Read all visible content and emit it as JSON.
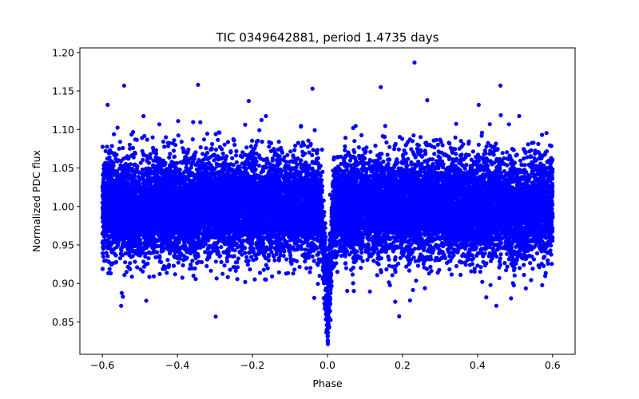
{
  "chart_data": {
    "type": "scatter",
    "title": "TIC 0349642881, period 1.4735 days",
    "xlabel": "Phase",
    "ylabel": "Normalized PDC flux",
    "xlim": [
      -0.66,
      0.66
    ],
    "ylim": [
      0.808,
      1.206
    ],
    "x_ticks": [
      -0.6,
      -0.4,
      -0.2,
      0.0,
      0.2,
      0.4,
      0.6
    ],
    "x_tick_labels": [
      "−0.6",
      "−0.4",
      "−0.2",
      "0.0",
      "0.2",
      "0.4",
      "0.6"
    ],
    "y_ticks": [
      0.85,
      0.9,
      0.95,
      1.0,
      1.05,
      1.1,
      1.15,
      1.2
    ],
    "y_tick_labels": [
      "0.85",
      "0.90",
      "0.95",
      "1.00",
      "1.05",
      "1.10",
      "1.15",
      "1.20"
    ],
    "grid": false,
    "marker_color": "#0000ff",
    "baseline_flux": 1.0,
    "flux_scatter_band": [
      0.93,
      1.07
    ],
    "eclipse": {
      "center_phase": 0.0,
      "half_width": 0.02,
      "min_flux": 0.82
    },
    "secondary_dips": [
      {
        "center_phase": -0.5,
        "depth": 0.01
      },
      {
        "center_phase": 0.5,
        "depth": 0.01
      }
    ],
    "outliers": [
      {
        "x": 0.232,
        "y": 1.187
      },
      {
        "x": -0.345,
        "y": 1.158
      },
      {
        "x": -0.542,
        "y": 1.157
      },
      {
        "x": 0.461,
        "y": 1.157
      },
      {
        "x": 0.142,
        "y": 1.155
      },
      {
        "x": -0.04,
        "y": 1.153
      },
      {
        "x": 0.266,
        "y": 1.138
      },
      {
        "x": -0.21,
        "y": 1.137
      },
      {
        "x": -0.586,
        "y": 1.132
      },
      {
        "x": 0.403,
        "y": 1.132
      },
      {
        "x": -0.298,
        "y": 0.857
      },
      {
        "x": -0.55,
        "y": 0.871
      },
      {
        "x": 0.45,
        "y": 0.871
      },
      {
        "x": 0.22,
        "y": 0.878
      }
    ]
  }
}
